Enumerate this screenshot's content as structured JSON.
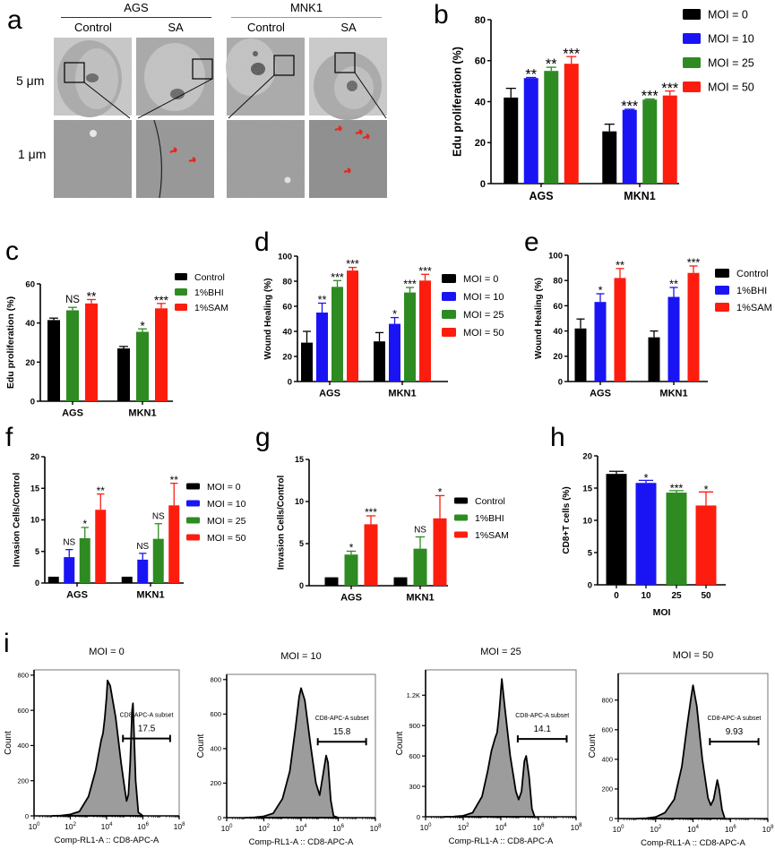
{
  "figure": {
    "panel_letters": [
      "a",
      "b",
      "c",
      "d",
      "e",
      "f",
      "g",
      "h",
      "i"
    ]
  },
  "panel_a": {
    "groups": [
      {
        "name": "AGS",
        "conditions": [
          "Control",
          "SA"
        ]
      },
      {
        "name": "MNK1",
        "conditions": [
          "Control",
          "SA"
        ]
      }
    ],
    "row_labels": [
      "5 μm",
      "1 μm"
    ],
    "arrow_color": "#e8261e"
  },
  "colors": {
    "black": "#000000",
    "blue": "#1a14f5",
    "green": "#2e8b22",
    "red": "#fd1d0e"
  },
  "chart_data": [
    {
      "id": "b",
      "type": "bar",
      "ylabel": "Edu proliferation (%)",
      "xlabel": "",
      "ylim": [
        0,
        80
      ],
      "yticks": [
        0,
        20,
        40,
        60,
        80
      ],
      "categories": [
        "AGS",
        "MKN1"
      ],
      "legend_position": "right",
      "series": [
        {
          "name": "MOI = 0",
          "color": "#000000",
          "values": [
            42,
            25.5
          ],
          "errors": [
            4.5,
            3.5
          ],
          "sig": [
            "",
            ""
          ]
        },
        {
          "name": "MOI = 10",
          "color": "#1a14f5",
          "values": [
            51.5,
            36
          ],
          "errors": [
            0.3,
            0.3
          ],
          "sig": [
            "**",
            "***"
          ]
        },
        {
          "name": "MOI = 25",
          "color": "#2e8b22",
          "values": [
            55,
            41
          ],
          "errors": [
            1.8,
            0.3
          ],
          "sig": [
            "**",
            "***"
          ]
        },
        {
          "name": "MOI = 50",
          "color": "#fd1d0e",
          "values": [
            58.5,
            43
          ],
          "errors": [
            3.5,
            2.2
          ],
          "sig": [
            "***",
            "***"
          ]
        }
      ]
    },
    {
      "id": "c",
      "type": "bar",
      "ylabel": "Edu proliferation (%)",
      "xlabel": "",
      "ylim": [
        0,
        60
      ],
      "yticks": [
        0,
        20,
        40,
        60
      ],
      "categories": [
        "AGS",
        "MKN1"
      ],
      "legend_position": "top-right",
      "series": [
        {
          "name": "Control",
          "color": "#000000",
          "values": [
            41.5,
            27
          ],
          "errors": [
            1,
            1
          ],
          "sig": [
            "",
            ""
          ]
        },
        {
          "name": "1%BHI",
          "color": "#2e8b22",
          "values": [
            46.5,
            35.5
          ],
          "errors": [
            1.5,
            1.5
          ],
          "sig": [
            "NS",
            "*"
          ]
        },
        {
          "name": "1%SAM",
          "color": "#fd1d0e",
          "values": [
            50,
            47.5
          ],
          "errors": [
            2,
            2.5
          ],
          "sig": [
            "**",
            "***"
          ]
        }
      ]
    },
    {
      "id": "d",
      "type": "bar",
      "ylabel": "Wound Healing (%)",
      "xlabel": "",
      "ylim": [
        0,
        100
      ],
      "yticks": [
        0,
        20,
        40,
        60,
        80,
        100
      ],
      "categories": [
        "AGS",
        "MKN1"
      ],
      "legend_position": "right",
      "series": [
        {
          "name": "MOI = 0",
          "color": "#000000",
          "values": [
            31,
            32
          ],
          "errors": [
            9,
            7
          ],
          "sig": [
            "",
            ""
          ]
        },
        {
          "name": "MOI = 10",
          "color": "#1a14f5",
          "values": [
            55,
            46
          ],
          "errors": [
            7.5,
            5
          ],
          "sig": [
            "**",
            "*"
          ]
        },
        {
          "name": "MOI = 25",
          "color": "#2e8b22",
          "values": [
            75.5,
            71
          ],
          "errors": [
            5,
            4
          ],
          "sig": [
            "***",
            "***"
          ]
        },
        {
          "name": "MOI = 50",
          "color": "#fd1d0e",
          "values": [
            88.5,
            80.5
          ],
          "errors": [
            2.5,
            5
          ],
          "sig": [
            "***",
            "***"
          ]
        }
      ]
    },
    {
      "id": "e",
      "type": "bar",
      "ylabel": "Wound Healing (%)",
      "xlabel": "",
      "ylim": [
        0,
        100
      ],
      "yticks": [
        0,
        20,
        40,
        60,
        80,
        100
      ],
      "categories": [
        "AGS",
        "MKN1"
      ],
      "legend_position": "right",
      "series": [
        {
          "name": "Control",
          "color": "#000000",
          "values": [
            42,
            35
          ],
          "errors": [
            7.5,
            5
          ],
          "sig": [
            "",
            ""
          ]
        },
        {
          "name": "1%BHI",
          "color": "#1a14f5",
          "values": [
            63,
            67
          ],
          "errors": [
            6.5,
            7.5
          ],
          "sig": [
            "*",
            "**"
          ]
        },
        {
          "name": "1%SAM",
          "color": "#fd1d0e",
          "values": [
            82,
            86
          ],
          "errors": [
            7.5,
            5.5
          ],
          "sig": [
            "**",
            "***"
          ]
        }
      ]
    },
    {
      "id": "f",
      "type": "bar",
      "ylabel": "Invasion Cells/Control",
      "xlabel": "",
      "ylim": [
        0,
        20
      ],
      "yticks": [
        0,
        5,
        10,
        15,
        20
      ],
      "categories": [
        "AGS",
        "MKN1"
      ],
      "legend_position": "right",
      "series": [
        {
          "name": "MOI = 0",
          "color": "#000000",
          "values": [
            1,
            1
          ],
          "errors": [
            0,
            0
          ],
          "sig": [
            "",
            ""
          ]
        },
        {
          "name": "MOI = 10",
          "color": "#1a14f5",
          "values": [
            4.1,
            3.7
          ],
          "errors": [
            1.2,
            1
          ],
          "sig": [
            "NS",
            "NS"
          ]
        },
        {
          "name": "MOI = 25",
          "color": "#2e8b22",
          "values": [
            7.1,
            7
          ],
          "errors": [
            1.7,
            2.4
          ],
          "sig": [
            "*",
            "NS"
          ]
        },
        {
          "name": "MOI = 50",
          "color": "#fd1d0e",
          "values": [
            11.6,
            12.3
          ],
          "errors": [
            2.5,
            3.5
          ],
          "sig": [
            "**",
            "**"
          ]
        }
      ]
    },
    {
      "id": "g",
      "type": "bar",
      "ylabel": "Invasion Cells/Control",
      "xlabel": "",
      "ylim": [
        0,
        15
      ],
      "yticks": [
        0,
        5,
        10,
        15
      ],
      "categories": [
        "AGS",
        "MKN1"
      ],
      "legend_position": "right",
      "series": [
        {
          "name": "Control",
          "color": "#000000",
          "values": [
            1,
            1
          ],
          "errors": [
            0,
            0
          ],
          "sig": [
            "",
            ""
          ]
        },
        {
          "name": "1%BHI",
          "color": "#2e8b22",
          "values": [
            3.7,
            4.4
          ],
          "errors": [
            0.4,
            1.4
          ],
          "sig": [
            "*",
            "NS"
          ]
        },
        {
          "name": "1%SAM",
          "color": "#fd1d0e",
          "values": [
            7.3,
            8
          ],
          "errors": [
            1,
            2.7
          ],
          "sig": [
            "***",
            "*"
          ]
        }
      ]
    },
    {
      "id": "h",
      "type": "bar",
      "ylabel": "CD8+T cells (%)",
      "xlabel": "MOI",
      "ylim": [
        0,
        20
      ],
      "yticks": [
        0,
        5,
        10,
        15,
        20
      ],
      "categories": [
        "0",
        "10",
        "25",
        "50"
      ],
      "legend_position": "none",
      "bars": [
        {
          "label": "0",
          "color": "#000000",
          "value": 17.2,
          "error": 0.4,
          "sig": ""
        },
        {
          "label": "10",
          "color": "#1a14f5",
          "value": 15.8,
          "error": 0.4,
          "sig": "*"
        },
        {
          "label": "25",
          "color": "#2e8b22",
          "value": 14.3,
          "error": 0.3,
          "sig": "***"
        },
        {
          "label": "50",
          "color": "#fd1d0e",
          "value": 12.3,
          "error": 2.1,
          "sig": "*"
        }
      ]
    },
    {
      "id": "i",
      "type": "area",
      "xlabel": "Comp-RL1-A :: CD8-APC-A",
      "ylabel": "Count",
      "xscale": "log10",
      "xticks": [
        "10^0",
        "10^2",
        "10^4",
        "10^6",
        "10^8"
      ],
      "gate_label": "CD8-APC-A subset",
      "gate_range_log10": [
        4.9,
        7.5
      ],
      "histograms": [
        {
          "title": "MOI = 0",
          "gate_value": "17.5",
          "ymax": 830,
          "yticks": [
            {
              "v": 0,
              "label": "0"
            },
            {
              "v": 200,
              "label": "200"
            },
            {
              "v": 400,
              "label": "400"
            },
            {
              "v": 600,
              "label": "600"
            },
            {
              "v": 800,
              "label": "800"
            }
          ],
          "curve": [
            [
              1.0,
              0
            ],
            [
              1.5,
              2
            ],
            [
              2.0,
              8
            ],
            [
              2.5,
              25
            ],
            [
              3.0,
              110
            ],
            [
              3.4,
              260
            ],
            [
              3.7,
              430
            ],
            [
              3.8,
              470
            ],
            [
              3.9,
              560
            ],
            [
              4.0,
              680
            ],
            [
              4.05,
              770
            ],
            [
              4.2,
              740
            ],
            [
              4.5,
              560
            ],
            [
              4.8,
              300
            ],
            [
              5.0,
              150
            ],
            [
              5.1,
              85
            ],
            [
              5.2,
              120
            ],
            [
              5.3,
              300
            ],
            [
              5.4,
              600
            ],
            [
              5.45,
              640
            ],
            [
              5.5,
              500
            ],
            [
              5.6,
              200
            ],
            [
              5.75,
              20
            ],
            [
              6.0,
              0
            ]
          ]
        },
        {
          "title": "MOI = 10",
          "gate_value": "15.8",
          "ymax": 830,
          "yticks": [
            {
              "v": 0,
              "label": "0"
            },
            {
              "v": 200,
              "label": "200"
            },
            {
              "v": 400,
              "label": "400"
            },
            {
              "v": 600,
              "label": "600"
            },
            {
              "v": 800,
              "label": "800"
            }
          ],
          "curve": [
            [
              1.0,
              0
            ],
            [
              1.5,
              2
            ],
            [
              2.0,
              8
            ],
            [
              2.5,
              25
            ],
            [
              3.0,
              110
            ],
            [
              3.4,
              270
            ],
            [
              3.7,
              520
            ],
            [
              3.9,
              700
            ],
            [
              4.0,
              750
            ],
            [
              4.2,
              680
            ],
            [
              4.5,
              430
            ],
            [
              4.8,
              200
            ],
            [
              5.0,
              130
            ],
            [
              5.2,
              260
            ],
            [
              5.35,
              360
            ],
            [
              5.45,
              320
            ],
            [
              5.6,
              100
            ],
            [
              5.75,
              10
            ],
            [
              6.0,
              0
            ]
          ]
        },
        {
          "title": "MOI = 25",
          "gate_value": "14.1",
          "ymax": 1450,
          "yticks": [
            {
              "v": 0,
              "label": "0"
            },
            {
              "v": 300,
              "label": "300"
            },
            {
              "v": 600,
              "label": "600"
            },
            {
              "v": 900,
              "label": "900"
            },
            {
              "v": 1200,
              "label": "1.2K"
            }
          ],
          "curve": [
            [
              1.0,
              0
            ],
            [
              1.5,
              2
            ],
            [
              2.0,
              10
            ],
            [
              2.5,
              40
            ],
            [
              3.0,
              200
            ],
            [
              3.3,
              450
            ],
            [
              3.5,
              650
            ],
            [
              3.7,
              780
            ],
            [
              3.8,
              830
            ],
            [
              3.9,
              1000
            ],
            [
              4.05,
              1360
            ],
            [
              4.2,
              1100
            ],
            [
              4.5,
              600
            ],
            [
              4.8,
              250
            ],
            [
              4.95,
              170
            ],
            [
              5.1,
              250
            ],
            [
              5.25,
              550
            ],
            [
              5.35,
              600
            ],
            [
              5.5,
              400
            ],
            [
              5.65,
              80
            ],
            [
              5.8,
              0
            ]
          ]
        },
        {
          "title": "MOI = 50",
          "gate_value": "9.93",
          "ymax": 980,
          "yticks": [
            {
              "v": 0,
              "label": "0"
            },
            {
              "v": 200,
              "label": "200"
            },
            {
              "v": 400,
              "label": "400"
            },
            {
              "v": 600,
              "label": "600"
            },
            {
              "v": 800,
              "label": "800"
            }
          ],
          "curve": [
            [
              1.0,
              0
            ],
            [
              1.5,
              2
            ],
            [
              2.0,
              10
            ],
            [
              2.5,
              40
            ],
            [
              3.0,
              130
            ],
            [
              3.4,
              350
            ],
            [
              3.7,
              640
            ],
            [
              3.9,
              820
            ],
            [
              4.0,
              900
            ],
            [
              4.2,
              760
            ],
            [
              4.5,
              400
            ],
            [
              4.8,
              140
            ],
            [
              4.95,
              90
            ],
            [
              5.1,
              130
            ],
            [
              5.3,
              260
            ],
            [
              5.4,
              200
            ],
            [
              5.55,
              60
            ],
            [
              5.7,
              0
            ]
          ]
        }
      ]
    }
  ]
}
